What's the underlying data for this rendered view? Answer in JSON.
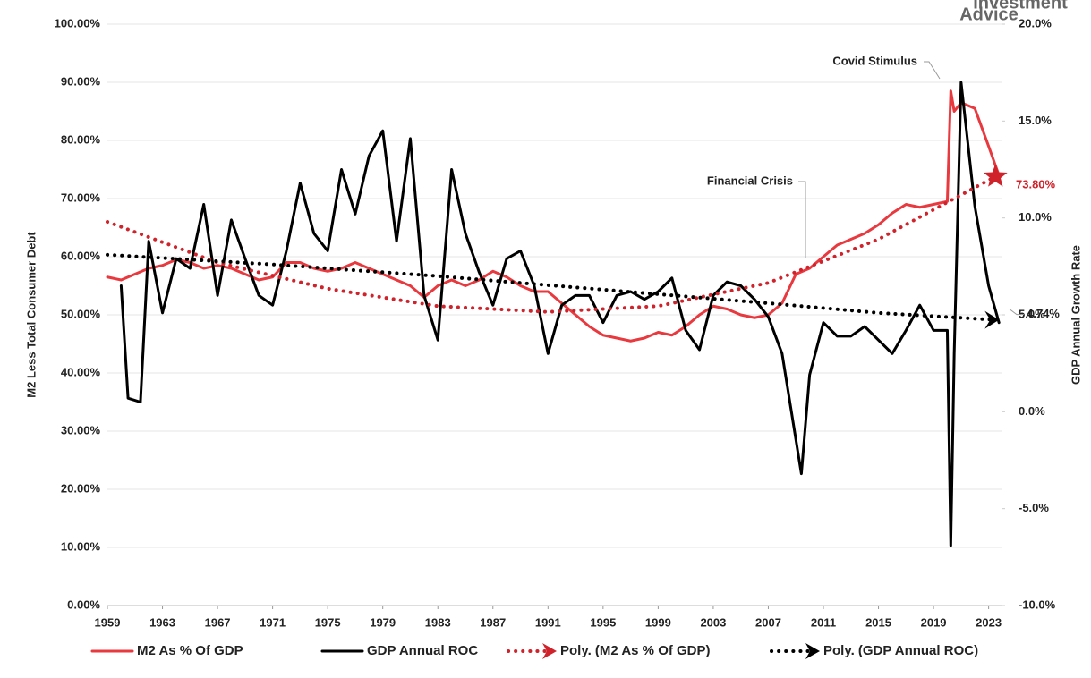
{
  "chart_data": {
    "type": "line",
    "logo": [
      "Investment",
      "Advice"
    ],
    "y_label": "M2 Less Total Consumer Debt",
    "y2_label": "GDP Annual Growth Rate",
    "annotations": [
      "Covid Stimulus",
      "Financial Crisis"
    ],
    "xlim": [
      1959,
      2024
    ],
    "xticks": [
      1959,
      1963,
      1967,
      1971,
      1975,
      1979,
      1983,
      1987,
      1991,
      1995,
      1999,
      2003,
      2007,
      2011,
      2015,
      2019,
      2023
    ],
    "ylim": [
      0,
      100
    ],
    "yticks": [
      {
        "value": 0,
        "label": "0.00%"
      },
      {
        "value": 10,
        "label": "10.00%"
      },
      {
        "value": 20,
        "label": "20.00%"
      },
      {
        "value": 30,
        "label": "30.00%"
      },
      {
        "value": 40,
        "label": "40.00%"
      },
      {
        "value": 50,
        "label": "50.00%"
      },
      {
        "value": 60,
        "label": "60.00%"
      },
      {
        "value": 70,
        "label": "70.00%"
      },
      {
        "value": 80,
        "label": "80.00%"
      },
      {
        "value": 90,
        "label": "90.00%"
      },
      {
        "value": 100,
        "label": "100.00%"
      }
    ],
    "y2lim": [
      -10,
      20
    ],
    "y2ticks": [
      {
        "value": -10,
        "label": "-10.0%"
      },
      {
        "value": -5,
        "label": "-5.0%"
      },
      {
        "value": 0,
        "label": "0.0%"
      },
      {
        "value": 5,
        "label": "5.0%"
      },
      {
        "value": 10,
        "label": "10.0%"
      },
      {
        "value": 15,
        "label": "15.0%"
      },
      {
        "value": 20,
        "label": "20.0%"
      }
    ],
    "grid": true,
    "series": [
      {
        "name": "M2 As % Of GDP",
        "color": "#e8393f",
        "style": "solid",
        "axis": "y",
        "x": [
          1959,
          1960,
          1961,
          1962,
          1963,
          1964,
          1965,
          1966,
          1967,
          1968,
          1969,
          1970,
          1971,
          1972,
          1973,
          1974,
          1975,
          1976,
          1977,
          1978,
          1979,
          1980,
          1981,
          1982,
          1983,
          1984,
          1985,
          1986,
          1987,
          1988,
          1989,
          1990,
          1991,
          1992,
          1993,
          1994,
          1995,
          1996,
          1997,
          1998,
          1999,
          2000,
          2001,
          2002,
          2003,
          2004,
          2005,
          2006,
          2007,
          2008,
          2009,
          2010,
          2011,
          2012,
          2013,
          2014,
          2015,
          2016,
          2017,
          2018,
          2019,
          2020,
          2020.25,
          2020.5,
          2021,
          2022,
          2023,
          2023.75
        ],
        "values": [
          56.5,
          56,
          57,
          58,
          58.5,
          59.5,
          59,
          58,
          58.5,
          58,
          57,
          56,
          56.5,
          59,
          59,
          58,
          57.5,
          58,
          59,
          58,
          57,
          56,
          55,
          53,
          55,
          56,
          55,
          56,
          57.5,
          56.5,
          55,
          54,
          54,
          52,
          50,
          48,
          46.5,
          46,
          45.5,
          46,
          47,
          46.5,
          48,
          50,
          51.5,
          51,
          50,
          49.5,
          50,
          52,
          57,
          58,
          60,
          62,
          63,
          64,
          65.5,
          67.5,
          69,
          68.5,
          69,
          69.5,
          88.5,
          85,
          86.5,
          85.5,
          79,
          74
        ]
      },
      {
        "name": "GDP Annual ROC",
        "color": "#000000",
        "style": "solid",
        "axis": "y2",
        "x": [
          1960,
          1960.5,
          1961.4,
          1962,
          1963,
          1964,
          1965,
          1966,
          1967,
          1968,
          1969,
          1970,
          1971,
          1972,
          1973,
          1974,
          1975,
          1976,
          1977,
          1978,
          1979,
          1980,
          1981,
          1982,
          1983,
          1984,
          1985,
          1986,
          1987,
          1988,
          1989,
          1990,
          1991,
          1992,
          1993,
          1994,
          1995,
          1996,
          1997,
          1998,
          1999,
          2000,
          2001,
          2002,
          2003,
          2004,
          2005,
          2006,
          2007,
          2008,
          2009.4,
          2010,
          2011,
          2012,
          2013,
          2014,
          2015,
          2016,
          2017,
          2018,
          2019,
          2020,
          2020.25,
          2020.5,
          2021,
          2022,
          2023,
          2023.75
        ],
        "values": [
          6.5,
          0.7,
          0.5,
          8.8,
          5.1,
          7.9,
          7.4,
          10.7,
          6.0,
          9.9,
          7.9,
          6.0,
          5.5,
          8.3,
          11.8,
          9.2,
          8.3,
          12.5,
          10.2,
          13.2,
          14.5,
          8.8,
          14.1,
          6.0,
          3.7,
          12.5,
          9.2,
          7.2,
          5.5,
          7.9,
          8.3,
          6.5,
          3.0,
          5.5,
          6.0,
          6.0,
          4.6,
          6.0,
          6.2,
          5.8,
          6.2,
          6.9,
          4.2,
          3.2,
          6.0,
          6.7,
          6.5,
          5.8,
          4.9,
          3.0,
          -3.2,
          1.9,
          4.6,
          3.9,
          3.9,
          4.4,
          3.7,
          3.0,
          4.2,
          5.5,
          4.2,
          4.2,
          -6.9,
          3.0,
          17.0,
          10.6,
          6.5,
          4.6
        ]
      },
      {
        "name": "Poly. (M2 As % Of GDP)",
        "color": "#d0222a",
        "style": "dotted",
        "axis": "y",
        "end_label": "73.80%",
        "x": [
          1959,
          1967,
          1975,
          1983,
          1991,
          1999,
          2007,
          2015,
          2023.5
        ],
        "values": [
          66,
          59,
          54.5,
          51.5,
          50.5,
          51.5,
          55.5,
          63,
          73.8
        ]
      },
      {
        "name": "Poly. (GDP Annual ROC)",
        "color": "#000000",
        "style": "dotted",
        "axis": "y2",
        "end_label": "4.74%",
        "x": [
          1959,
          1971,
          1983,
          1995,
          2007,
          2015,
          2023.5
        ],
        "values": [
          8.1,
          7.6,
          7.0,
          6.3,
          5.6,
          5.1,
          4.74
        ]
      }
    ]
  }
}
